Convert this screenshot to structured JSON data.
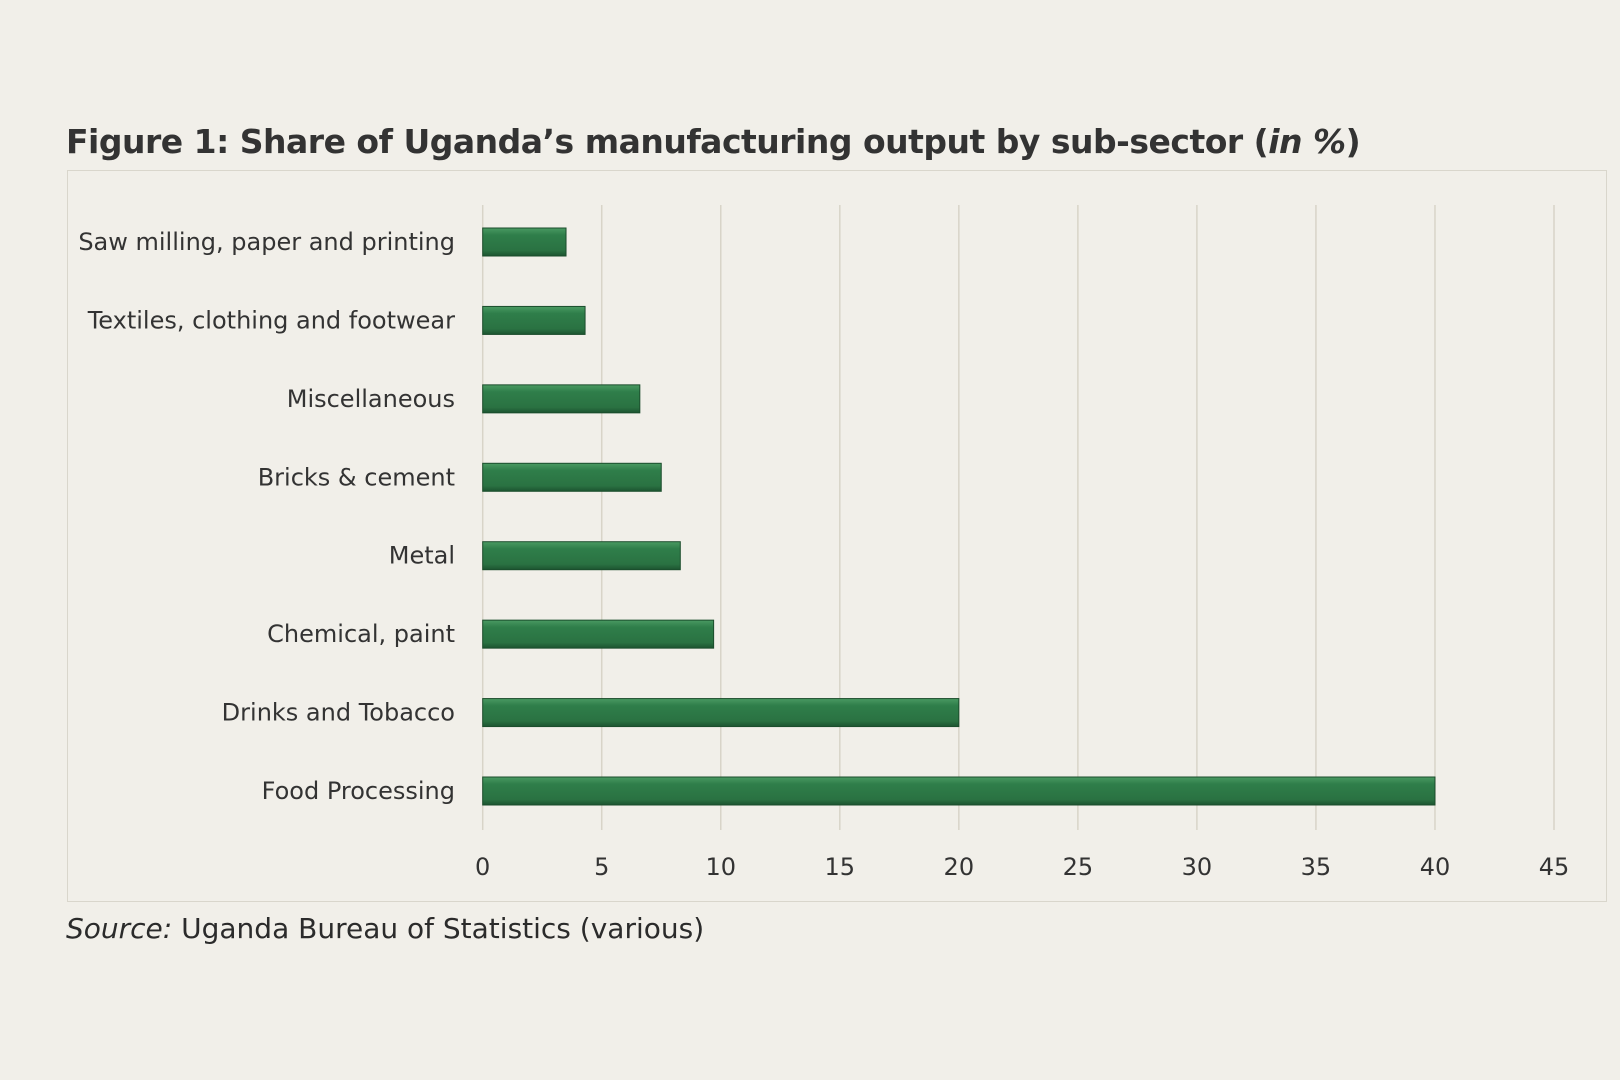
{
  "title": {
    "main": "Figure 1: Share of Uganda’s manufacturing output by sub-sector (",
    "italic": "in %",
    "end": ")"
  },
  "source": {
    "label": "Source:",
    "text": " Uganda Bureau of Statistics (various)"
  },
  "chart_data": {
    "type": "bar",
    "orientation": "horizontal",
    "categories": [
      "Saw milling, paper and printing",
      "Textiles, clothing and footwear",
      "Miscellaneous",
      "Bricks & cement",
      "Metal",
      "Chemical, paint",
      "Drinks and Tobacco",
      "Food Processing"
    ],
    "values": [
      3.5,
      4.3,
      6.6,
      7.5,
      8.3,
      9.7,
      20,
      40
    ],
    "xlim": [
      0,
      45
    ],
    "xticks": [
      0,
      5,
      10,
      15,
      20,
      25,
      30,
      35,
      40,
      45
    ],
    "grid": "vertical",
    "bar_color": "#2e7a47"
  }
}
